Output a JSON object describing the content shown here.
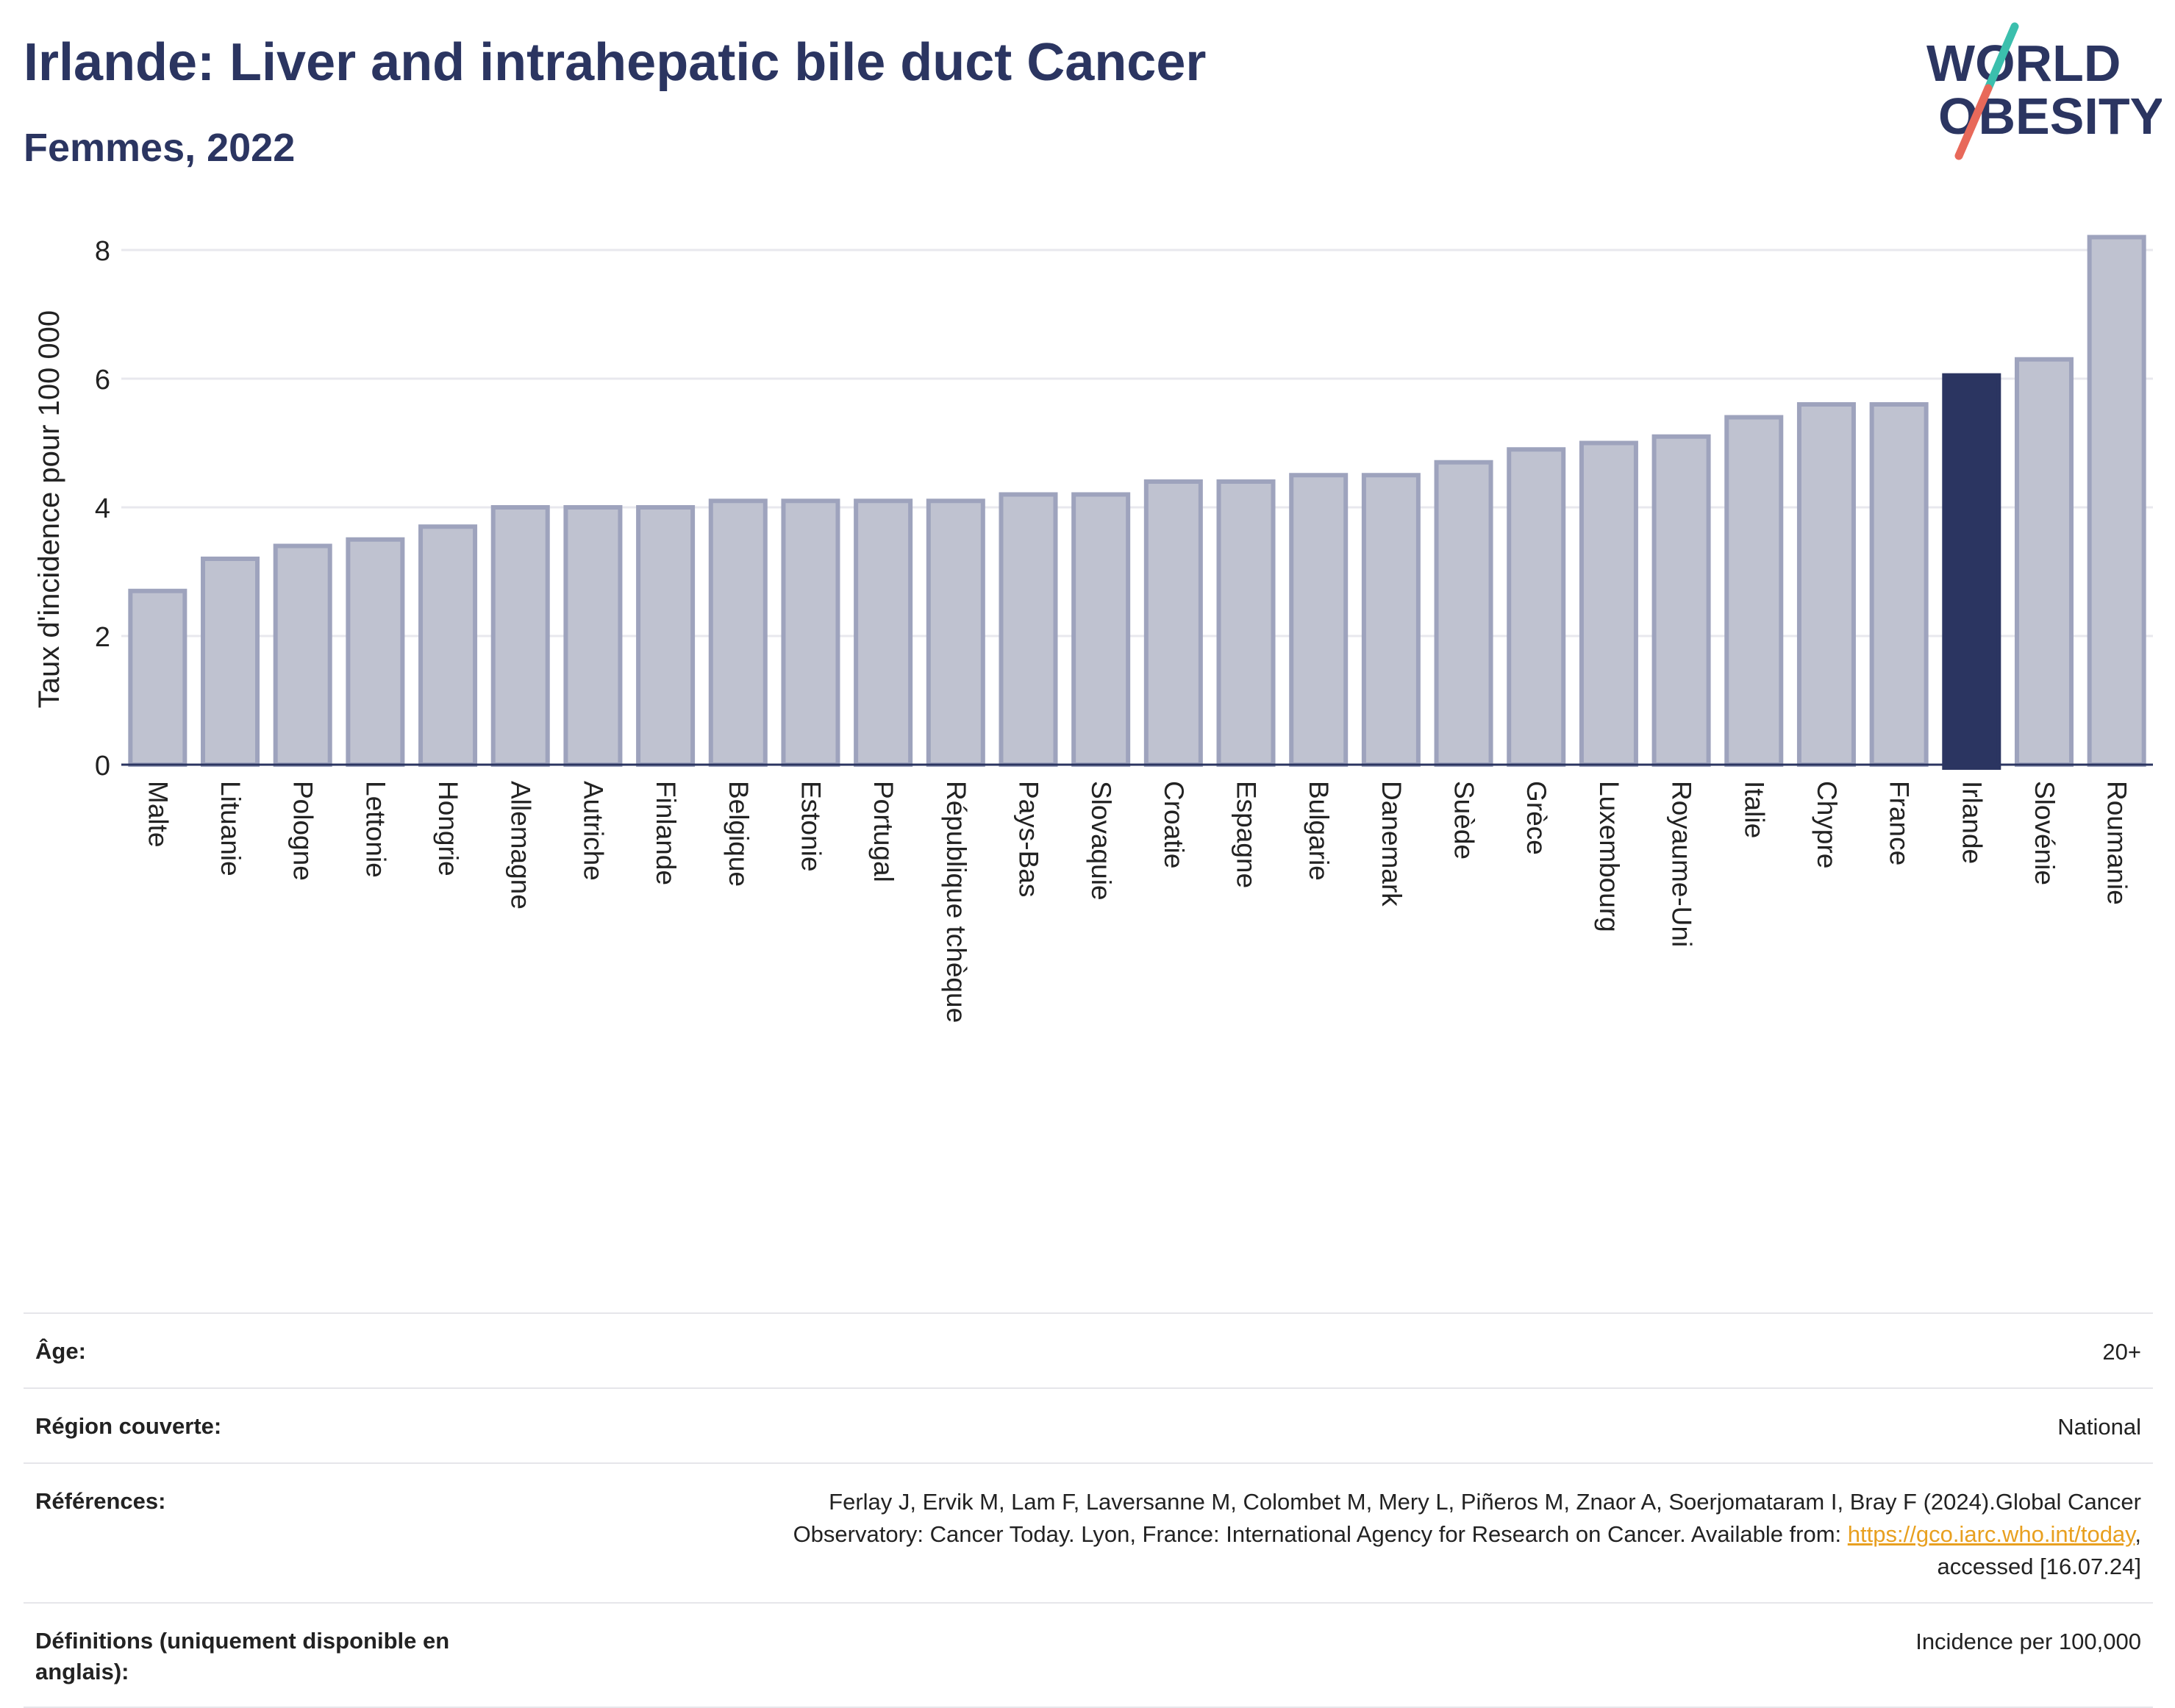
{
  "header": {
    "title": "Irlande: Liver and intrahepatic bile duct Cancer",
    "subtitle": "Femmes, 2022"
  },
  "logo": {
    "line1": "WORLD",
    "line2": "OBESITY",
    "text_color": "#2b3561",
    "slash_colors": [
      "#3bbfad",
      "#e8695a"
    ]
  },
  "colors": {
    "bar": "#bfc2d0",
    "bar_stroke": "#9ea3bd",
    "highlight": "#2b3561",
    "grid": "#e8e8ee",
    "axis": "#2b3561"
  },
  "chart_data": {
    "type": "bar",
    "ylabel": "Taux d'incidence pour 100 000",
    "ylim": [
      0,
      8.4
    ],
    "yticks": [
      0,
      2,
      4,
      6,
      8
    ],
    "grid": true,
    "highlight": "Irlande",
    "categories": [
      "Malte",
      "Lituanie",
      "Pologne",
      "Lettonie",
      "Hongrie",
      "Allemagne",
      "Autriche",
      "Finlande",
      "Belgique",
      "Estonie",
      "Portugal",
      "République tchèque",
      "Pays-Bas",
      "Slovaquie",
      "Croatie",
      "Espagne",
      "Bulgarie",
      "Danemark",
      "Suède",
      "Grèce",
      "Luxembourg",
      "Royaume-Uni",
      "Italie",
      "Chypre",
      "France",
      "Irlande",
      "Slovénie",
      "Roumanie"
    ],
    "values": [
      2.7,
      3.2,
      3.4,
      3.5,
      3.7,
      4.0,
      4.0,
      4.0,
      4.1,
      4.1,
      4.1,
      4.1,
      4.2,
      4.2,
      4.4,
      4.4,
      4.5,
      4.5,
      4.7,
      4.9,
      5.0,
      5.1,
      5.4,
      5.6,
      5.6,
      6.05,
      6.3,
      8.2
    ]
  },
  "info": {
    "age_label": "Âge:",
    "age_value": "20+",
    "region_label": "Région couverte:",
    "region_value": "National",
    "refs_label": "Références:",
    "refs_line1": "Ferlay J, Ervik M, Lam F, Laversanne M, Colombet M, Mery L, Piñeros M, Znaor A, Soerjomataram I, Bray F (2024).Global Cancer",
    "refs_line2_pre": "Observatory: Cancer Today. Lyon, France: International Agency for Research on Cancer. Available from: ",
    "refs_link": "https://gco.iarc.who.int/today",
    "refs_line2_post": ",",
    "refs_line3": "accessed [16.07.24]",
    "defs_label": "Définitions (uniquement disponible en anglais):",
    "defs_value": "Incidence per 100,000"
  }
}
